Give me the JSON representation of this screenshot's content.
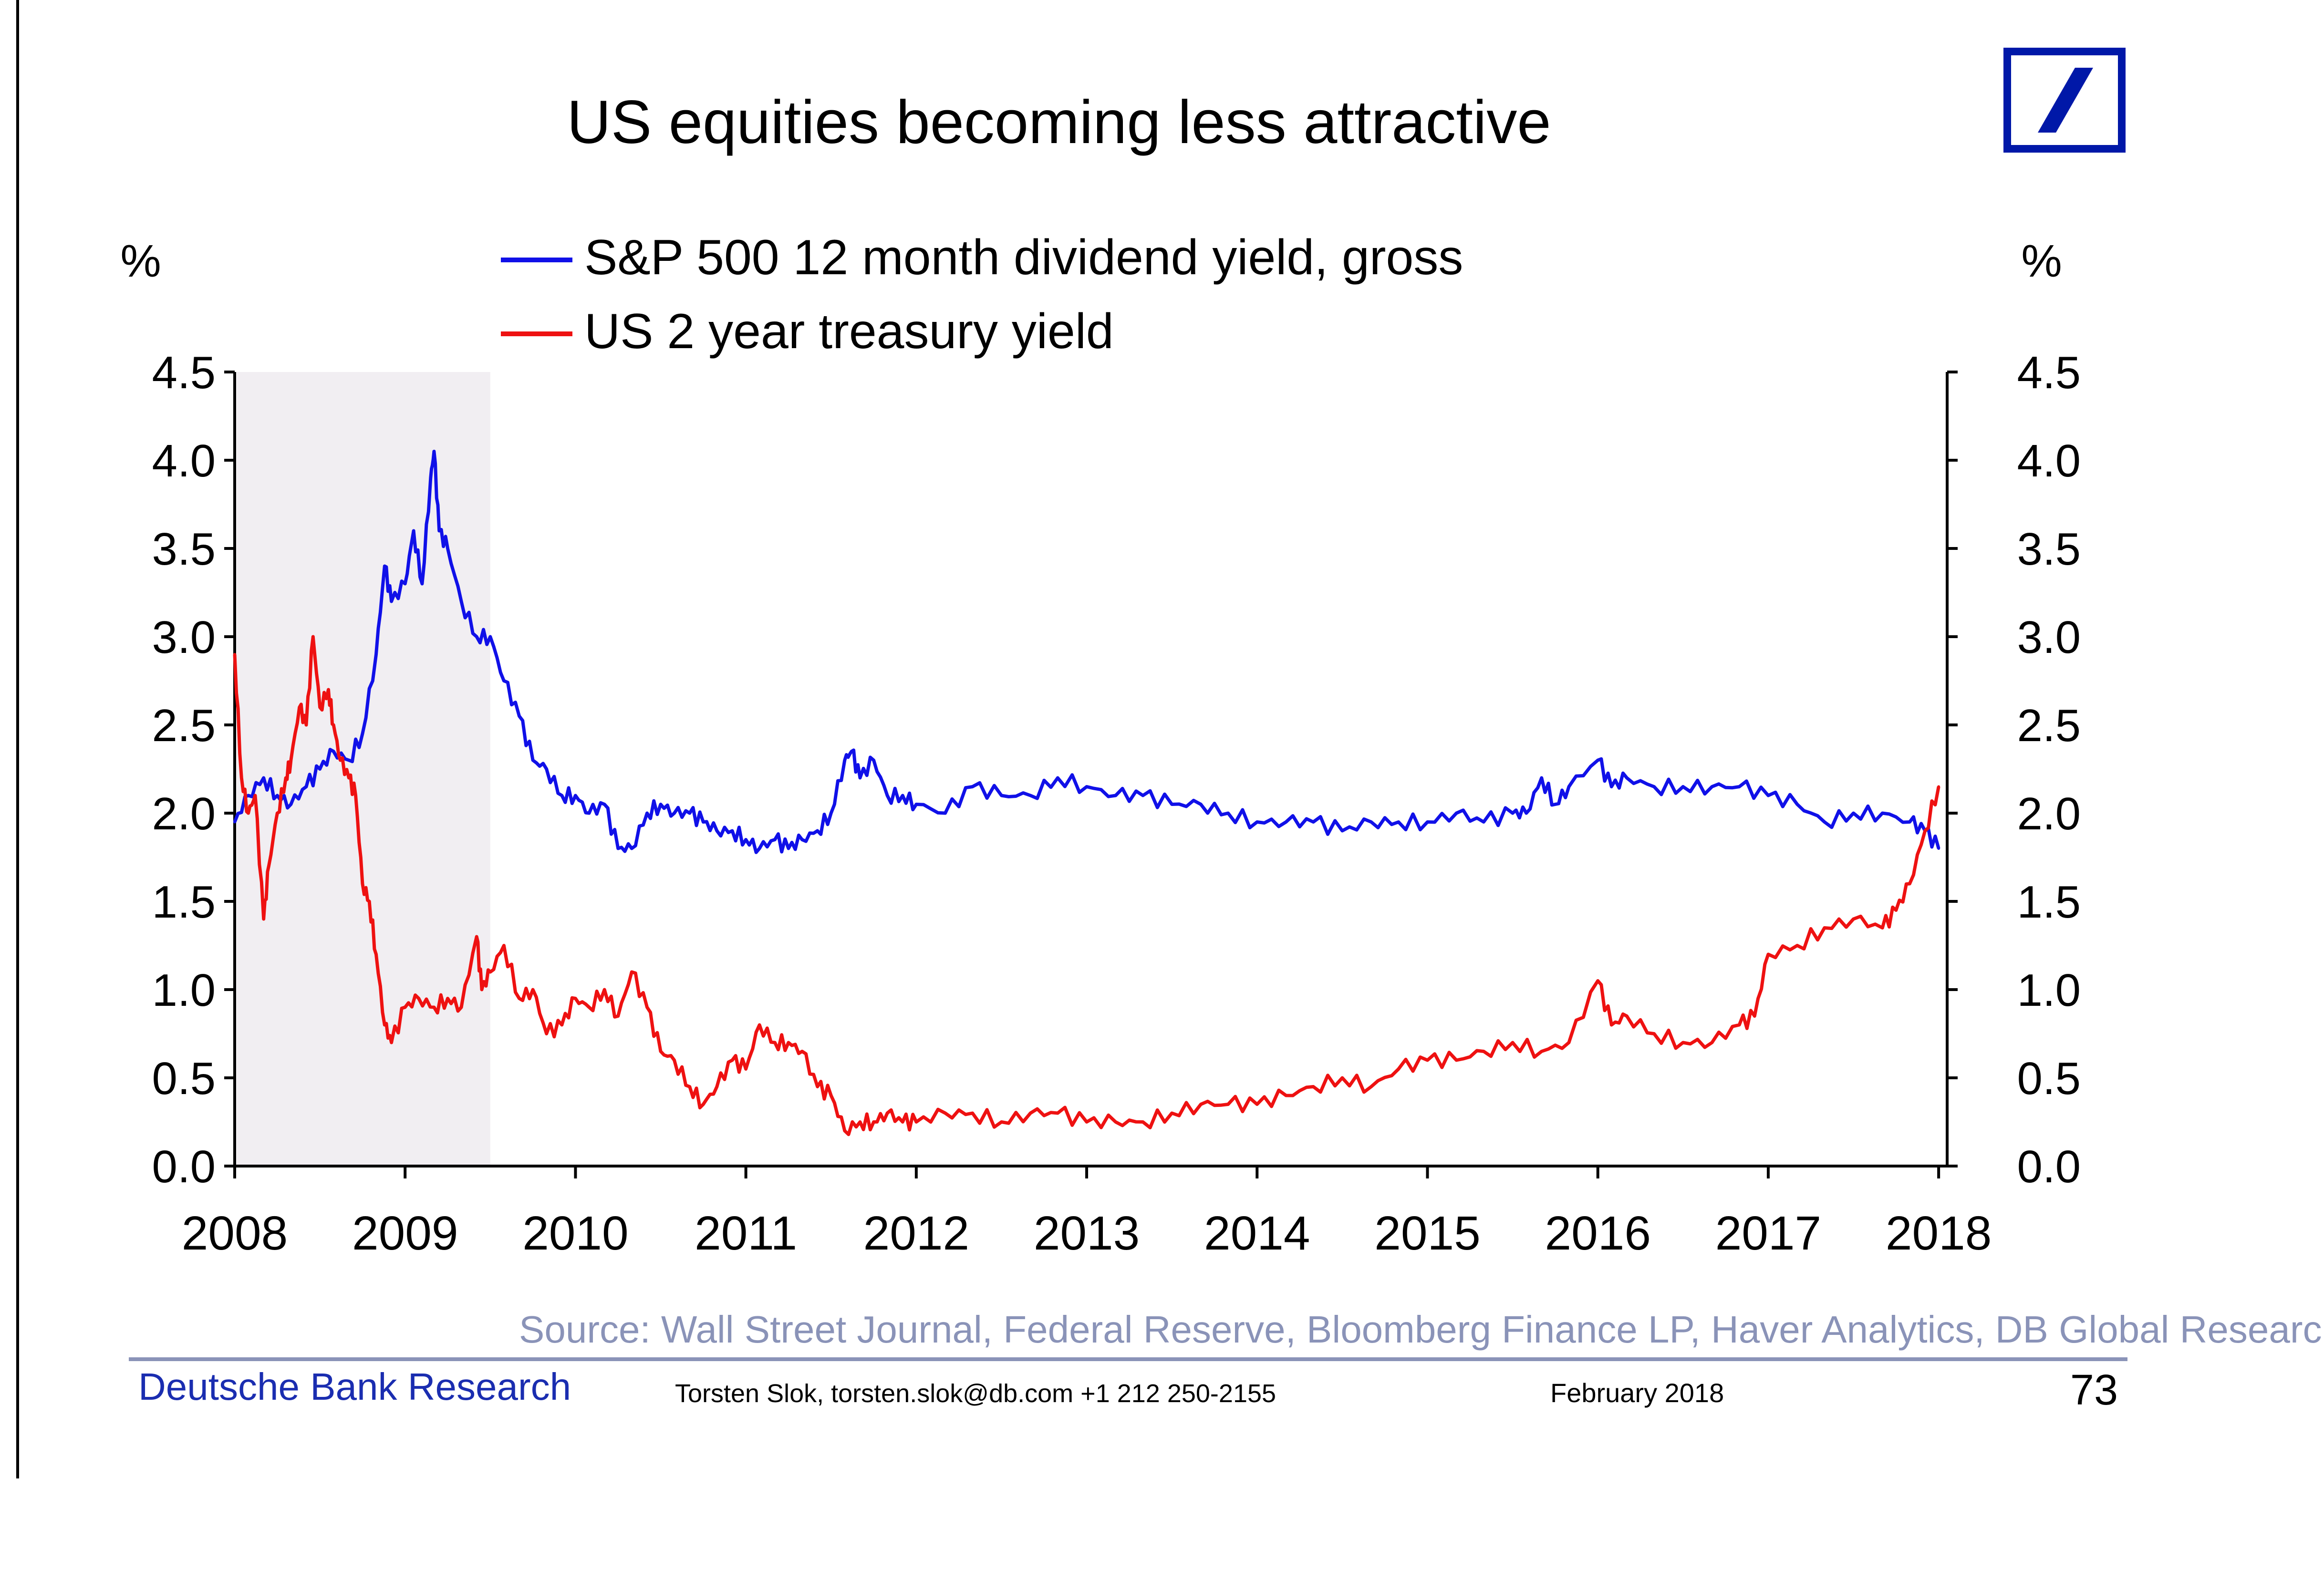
{
  "chart_data": {
    "type": "line",
    "title": "US equities becoming less attractive",
    "ylabel_left": "%",
    "ylabel_right": "%",
    "ylim": [
      0,
      4.5
    ],
    "yticks": [
      "0.0",
      "0.5",
      "1.0",
      "1.5",
      "2.0",
      "2.5",
      "3.0",
      "3.5",
      "4.0",
      "4.5"
    ],
    "xlim": [
      2008.0,
      2018.05
    ],
    "xticks": [
      "2008",
      "2009",
      "2010",
      "2011",
      "2012",
      "2013",
      "2014",
      "2015",
      "2016",
      "2017",
      "2018"
    ],
    "recession_shading": [
      2008.0,
      2009.5
    ],
    "legend": [
      {
        "name": "S&P 500 12 month dividend yield, gross",
        "color": "#1010e8"
      },
      {
        "name": "US 2 year treasury yield",
        "color": "#ee1111"
      }
    ],
    "series": [
      {
        "name": "S&P 500 12 month dividend yield, gross",
        "color": "#1010e8",
        "x": [
          2008.0,
          2008.08,
          2008.17,
          2008.25,
          2008.33,
          2008.42,
          2008.5,
          2008.58,
          2008.67,
          2008.75,
          2008.83,
          2008.88,
          2008.92,
          2009.0,
          2009.05,
          2009.1,
          2009.15,
          2009.17,
          2009.2,
          2009.25,
          2009.33,
          2009.42,
          2009.5,
          2009.58,
          2009.67,
          2009.75,
          2009.83,
          2009.92,
          2010.0,
          2010.08,
          2010.17,
          2010.25,
          2010.33,
          2010.42,
          2010.5,
          2010.58,
          2010.67,
          2010.75,
          2010.83,
          2010.92,
          2011.0,
          2011.08,
          2011.17,
          2011.25,
          2011.33,
          2011.42,
          2011.5,
          2011.58,
          2011.62,
          2011.67,
          2011.75,
          2011.83,
          2011.92,
          2012.0,
          2012.17,
          2012.33,
          2012.5,
          2012.67,
          2012.83,
          2013.0,
          2013.17,
          2013.33,
          2013.5,
          2013.67,
          2013.83,
          2014.0,
          2014.17,
          2014.33,
          2014.5,
          2014.67,
          2014.83,
          2015.0,
          2015.17,
          2015.33,
          2015.5,
          2015.58,
          2015.67,
          2015.75,
          2015.83,
          2016.0,
          2016.08,
          2016.17,
          2016.33,
          2016.5,
          2016.67,
          2016.83,
          2017.0,
          2017.17,
          2017.33,
          2017.5,
          2017.67,
          2017.83,
          2017.92,
          2018.0
        ],
        "y": [
          1.95,
          2.1,
          2.2,
          2.1,
          2.05,
          2.15,
          2.25,
          2.35,
          2.3,
          2.45,
          2.9,
          3.4,
          3.2,
          3.3,
          3.6,
          3.3,
          3.9,
          4.05,
          3.6,
          3.5,
          3.2,
          3.0,
          3.0,
          2.75,
          2.55,
          2.3,
          2.25,
          2.1,
          2.1,
          2.0,
          2.05,
          1.8,
          1.8,
          2.0,
          2.05,
          2.0,
          2.0,
          1.95,
          1.9,
          1.9,
          1.85,
          1.8,
          1.85,
          1.8,
          1.85,
          1.9,
          2.0,
          2.3,
          2.35,
          2.2,
          2.3,
          2.1,
          2.1,
          2.05,
          2.0,
          2.15,
          2.1,
          2.1,
          2.2,
          2.15,
          2.1,
          2.1,
          2.05,
          2.05,
          2.0,
          1.95,
          1.95,
          1.95,
          1.9,
          1.95,
          1.95,
          1.95,
          2.0,
          1.95,
          2.0,
          2.0,
          2.2,
          2.05,
          2.15,
          2.3,
          2.15,
          2.2,
          2.15,
          2.15,
          2.15,
          2.15,
          2.1,
          2.05,
          1.95,
          2.0,
          2.0,
          1.95,
          1.9,
          1.8
        ]
      },
      {
        "name": "US 2 year treasury yield",
        "color": "#ee1111",
        "x": [
          2008.0,
          2008.04,
          2008.08,
          2008.12,
          2008.17,
          2008.2,
          2008.25,
          2008.3,
          2008.33,
          2008.38,
          2008.42,
          2008.46,
          2008.5,
          2008.55,
          2008.58,
          2008.62,
          2008.67,
          2008.71,
          2008.75,
          2008.79,
          2008.83,
          2008.88,
          2008.92,
          2009.0,
          2009.08,
          2009.17,
          2009.25,
          2009.33,
          2009.42,
          2009.45,
          2009.5,
          2009.58,
          2009.67,
          2009.75,
          2009.83,
          2009.92,
          2010.0,
          2010.08,
          2010.17,
          2010.25,
          2010.33,
          2010.42,
          2010.5,
          2010.58,
          2010.67,
          2010.75,
          2010.83,
          2010.92,
          2011.0,
          2011.08,
          2011.17,
          2011.25,
          2011.33,
          2011.42,
          2011.5,
          2011.58,
          2011.67,
          2011.75,
          2011.83,
          2011.92,
          2012.0,
          2012.17,
          2012.33,
          2012.5,
          2012.67,
          2012.83,
          2013.0,
          2013.17,
          2013.33,
          2013.5,
          2013.67,
          2013.83,
          2014.0,
          2014.17,
          2014.33,
          2014.5,
          2014.67,
          2014.83,
          2015.0,
          2015.17,
          2015.33,
          2015.5,
          2015.67,
          2015.83,
          2016.0,
          2016.08,
          2016.17,
          2016.33,
          2016.5,
          2016.67,
          2016.83,
          2016.92,
          2017.0,
          2017.17,
          2017.33,
          2017.5,
          2017.67,
          2017.75,
          2017.83,
          2017.92,
          2018.0
        ],
        "y": [
          2.9,
          2.2,
          2.0,
          2.1,
          1.4,
          1.7,
          2.0,
          2.2,
          2.3,
          2.6,
          2.5,
          3.0,
          2.6,
          2.7,
          2.5,
          2.3,
          2.2,
          2.1,
          1.6,
          1.5,
          1.2,
          0.8,
          0.7,
          0.9,
          0.95,
          0.9,
          0.95,
          0.9,
          1.3,
          1.0,
          1.1,
          1.25,
          0.95,
          1.0,
          0.75,
          0.8,
          0.95,
          0.9,
          1.0,
          0.85,
          1.1,
          0.9,
          0.65,
          0.6,
          0.45,
          0.35,
          0.45,
          0.6,
          0.55,
          0.8,
          0.7,
          0.7,
          0.65,
          0.45,
          0.4,
          0.2,
          0.25,
          0.25,
          0.3,
          0.25,
          0.25,
          0.3,
          0.3,
          0.25,
          0.3,
          0.3,
          0.25,
          0.25,
          0.25,
          0.3,
          0.35,
          0.35,
          0.35,
          0.4,
          0.45,
          0.5,
          0.45,
          0.55,
          0.6,
          0.6,
          0.65,
          0.7,
          0.65,
          0.7,
          1.05,
          0.8,
          0.85,
          0.75,
          0.7,
          0.7,
          0.8,
          0.85,
          1.2,
          1.25,
          1.35,
          1.4,
          1.35,
          1.45,
          1.6,
          1.9,
          2.15
        ]
      }
    ]
  },
  "footer": {
    "source": "Source: Wall Street Journal, Federal Reserve, Bloomberg Finance LP, Haver Analytics, DB Global Research",
    "brand": "Deutsche Bank Research",
    "author": "Torsten Slok, torsten.slok@db.com  +1 212 250-2155",
    "date": "February 2018",
    "page_number": "73"
  },
  "colors": {
    "logo_blue": "#0018a8",
    "recession_shade": "#f1eef2",
    "source_text": "#8a93b8",
    "brand_text": "#1a2db0"
  }
}
